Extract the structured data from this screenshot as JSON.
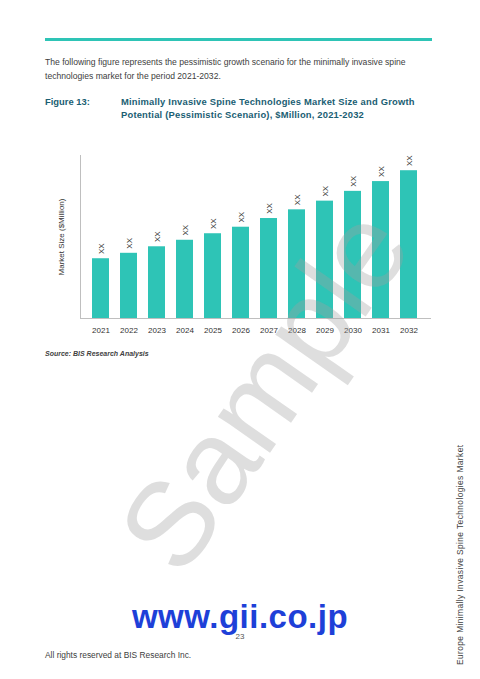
{
  "page": {
    "intro": "The following figure represents the pessimistic growth scenario for the  minimally invasive spine technologies market for the period 2021-2032.",
    "figure_label": "Figure 13:",
    "source": "Source: BIS Research Analysis",
    "watermark": "Sample",
    "url": "www.gii.co.jp",
    "page_number": "23",
    "footer": "All rights reserved at BIS Research Inc.",
    "side_text": "Europe Minimally Invasive Spine Technologies Market"
  },
  "chart_data": {
    "type": "bar",
    "title": "Minimally Invasive Spine Technologies Market Size and Growth Potential (Pessimistic Scenario), $Million, 2021-2032",
    "y_label": "Market Size ($Million)",
    "categories": [
      "2021",
      "2022",
      "2023",
      "2024",
      "2025",
      "2026",
      "2027",
      "2028",
      "2029",
      "2030",
      "2031",
      "2032"
    ],
    "values": [
      55,
      60,
      66,
      72,
      78,
      84,
      92,
      100,
      108,
      117,
      126,
      136
    ],
    "value_labels": [
      "XX",
      "XX",
      "XX",
      "XX",
      "XX",
      "XX",
      "XX",
      "XX",
      "XX",
      "XX",
      "XX",
      "XX"
    ],
    "data_labels": true,
    "color": "#2ec4b6",
    "ylim": [
      0,
      150
    ],
    "yticks": [],
    "tick_labels": "x",
    "grid": false
  }
}
